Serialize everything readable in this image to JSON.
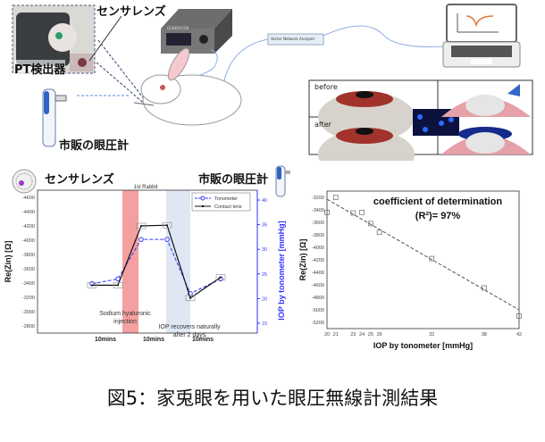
{
  "figure": {
    "caption": "図5：家兎眼を用いた眼圧無線計測結果",
    "labels": {
      "sensor_lens_top": "センサレンズ",
      "pt_detector": "PT検出器",
      "tonometer_top": "市販の眼圧計",
      "generator": "GENERATOR",
      "vna": "Vector Network Analyzer",
      "before": "before",
      "after": "after",
      "sensor_lens_chart": "センサレンズ",
      "tonometer_chart": "市販の眼圧計"
    },
    "colors": {
      "tonometer": "#3333ff",
      "contact_lens": "#111111",
      "injection_band": "#f4a0a0",
      "recovery_band": "#dfe6f4"
    }
  },
  "chart_data": [
    {
      "type": "line",
      "title": "1st Rabbit",
      "ylabel": "Re(Zin) [Ω]",
      "ylabel_right": "IOP by tonometer [mmHg]",
      "xtick_labels": [
        "10mins",
        "10mins",
        "10mins"
      ],
      "yticks": [
        -4600,
        -4400,
        -4200,
        -4000,
        -3800,
        -3600,
        -3400,
        -3200,
        -3000,
        -2800
      ],
      "yticks_right": [
        15,
        20,
        25,
        30,
        35,
        40
      ],
      "ylim": [
        -4700,
        -2700
      ],
      "ylim_right": [
        13,
        42
      ],
      "y_inverted": true,
      "legend_placement": "top-right",
      "series": [
        {
          "name": "Tonometer",
          "axis": "right",
          "style": "dashed-circle",
          "values": [
            23,
            24,
            32,
            32,
            21,
            24
          ]
        },
        {
          "name": "Contact lens",
          "axis": "left",
          "style": "solid-dot",
          "values": [
            -3370,
            -3370,
            -4200,
            -4210,
            -3190,
            -3480
          ]
        }
      ],
      "annotations": [
        "Sodium hyaluronic injection",
        "IOP recovers naturally after 2 days"
      ]
    },
    {
      "type": "scatter",
      "xlabel": "IOP by tonometer [mmHg]",
      "ylabel": "Re(Zin) [Ω]",
      "xticks": [
        20,
        21,
        23,
        24,
        25,
        26,
        32,
        38,
        42
      ],
      "yticks": [
        -3200,
        -3400,
        -3600,
        -3800,
        -4000,
        -4200,
        -4400,
        -4600,
        -4800,
        -5000,
        -5200
      ],
      "xlim": [
        20,
        42
      ],
      "ylim": [
        -5300,
        -3100
      ],
      "y_inverted": true,
      "points": [
        [
          20,
          -3440
        ],
        [
          21,
          -3200
        ],
        [
          23,
          -3450
        ],
        [
          24,
          -3440
        ],
        [
          25,
          -3620
        ],
        [
          26,
          -3760
        ],
        [
          32,
          -4180
        ],
        [
          38,
          -4650
        ],
        [
          42,
          -5100
        ]
      ],
      "fit_line": [
        [
          20,
          -3230
        ],
        [
          42,
          -5000
        ]
      ],
      "annotation": "coefficient of determination",
      "annotation2": "(R²)= 97%"
    }
  ]
}
